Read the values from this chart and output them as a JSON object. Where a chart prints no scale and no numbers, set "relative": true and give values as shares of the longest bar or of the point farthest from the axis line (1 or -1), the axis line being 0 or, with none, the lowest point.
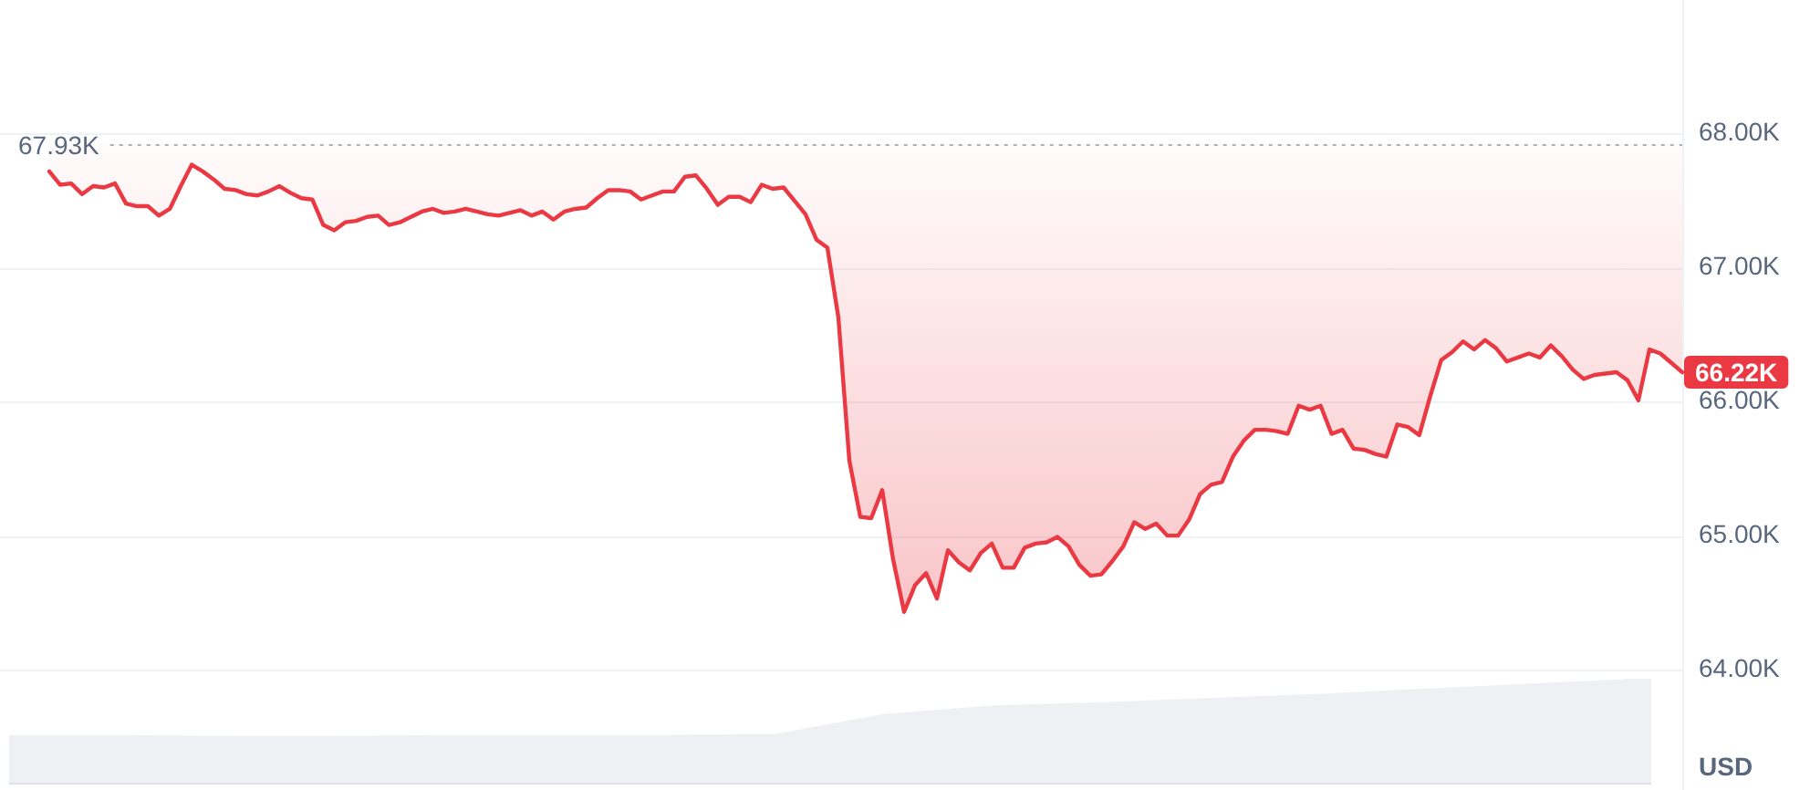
{
  "chart_data": [
    {
      "type": "line",
      "tick_labels": "y",
      "grid": "y",
      "ylabel": "USD",
      "categories": [
        null,
        null,
        null,
        null,
        null,
        null,
        null,
        null,
        null,
        null,
        null,
        null,
        null,
        null,
        null,
        null,
        null,
        null,
        null,
        null,
        null,
        null,
        null,
        null,
        null,
        null,
        null,
        null,
        null,
        null,
        null,
        null,
        null,
        null,
        null,
        null,
        null,
        null,
        null,
        null,
        null,
        null,
        null,
        null,
        null,
        null,
        null,
        null,
        null,
        null,
        null,
        null,
        null,
        null,
        null,
        null,
        null,
        null,
        null,
        null,
        null,
        null,
        null,
        null,
        null,
        null,
        null,
        null,
        null,
        null,
        null,
        null,
        null,
        null,
        null,
        null,
        null,
        null,
        null,
        null,
        null,
        null,
        null,
        null,
        null,
        null,
        null,
        null,
        null,
        null,
        null,
        null,
        null,
        null,
        null,
        null,
        null,
        null,
        null,
        null,
        null,
        null,
        null,
        null,
        null,
        null,
        null,
        null,
        null,
        null,
        null,
        null,
        null,
        null,
        null,
        null,
        null,
        null,
        null,
        null,
        null,
        null,
        null,
        null,
        null,
        null,
        null,
        null,
        null,
        null,
        null,
        null,
        null,
        null,
        null,
        null,
        null,
        null,
        null,
        null,
        null,
        null,
        null,
        null,
        null,
        null,
        null,
        null,
        null,
        null
      ],
      "series": [
        {
          "color": "#ea3943",
          "values": [
            67.72,
            67.62,
            67.63,
            67.55,
            67.61,
            67.6,
            67.63,
            67.48,
            67.46,
            67.46,
            67.39,
            67.44,
            67.61,
            67.77,
            67.72,
            67.66,
            67.59,
            67.58,
            67.55,
            67.54,
            67.57,
            67.61,
            67.56,
            67.52,
            67.51,
            67.32,
            67.28,
            67.34,
            67.35,
            67.38,
            67.39,
            67.32,
            67.34,
            67.38,
            67.42,
            67.44,
            67.41,
            67.42,
            67.44,
            67.42,
            67.4,
            67.39,
            67.41,
            67.43,
            67.39,
            67.42,
            67.36,
            67.42,
            67.44,
            67.45,
            67.52,
            67.58,
            67.58,
            67.57,
            67.51,
            67.54,
            67.57,
            67.57,
            67.68,
            67.69,
            67.59,
            67.47,
            67.53,
            67.53,
            67.49,
            67.62,
            67.59,
            67.6,
            67.5,
            67.4,
            67.21,
            67.15,
            66.63,
            65.56,
            65.14,
            65.13,
            65.34,
            64.82,
            64.43,
            64.63,
            64.72,
            64.53,
            64.89,
            64.8,
            64.74,
            64.87,
            64.94,
            64.76,
            64.76,
            64.91,
            64.94,
            64.95,
            64.99,
            64.92,
            64.78,
            64.7,
            64.71,
            64.81,
            64.92,
            65.1,
            65.05,
            65.09,
            65.0,
            65.0,
            65.12,
            65.31,
            65.38,
            65.4,
            65.59,
            65.71,
            65.79,
            65.79,
            65.78,
            65.76,
            65.97,
            65.94,
            65.97,
            65.76,
            65.79,
            65.65,
            65.64,
            65.61,
            65.59,
            65.83,
            65.81,
            65.75,
            66.04,
            66.31,
            66.37,
            66.45,
            66.39,
            66.46,
            66.4,
            66.3,
            66.33,
            66.36,
            66.33,
            66.42,
            66.34,
            66.24,
            66.17,
            66.2,
            66.21,
            66.22,
            66.16,
            66.01,
            66.39,
            66.36,
            66.29,
            66.22
          ],
          "lower": [
            67.72,
            67.62,
            67.63,
            67.55,
            67.61,
            67.6,
            67.63,
            67.48,
            67.46,
            67.46,
            67.39,
            67.44,
            67.61,
            67.77,
            67.72,
            67.66,
            67.59,
            67.58,
            67.55,
            67.54,
            67.57,
            67.61,
            67.56,
            67.52,
            67.51,
            67.32,
            67.28,
            67.34,
            67.35,
            67.38,
            67.39,
            67.32,
            67.34,
            67.38,
            67.42,
            67.44,
            67.41,
            67.42,
            67.44,
            67.42,
            67.4,
            67.39,
            67.41,
            67.43,
            67.39,
            67.42,
            67.36,
            67.42,
            67.44,
            67.45,
            67.52,
            67.58,
            67.58,
            67.57,
            67.51,
            67.54,
            67.57,
            67.57,
            67.68,
            67.69,
            67.59,
            67.47,
            67.53,
            67.53,
            67.49,
            67.62,
            67.59,
            67.6,
            67.5,
            67.4,
            67.21,
            67.15,
            66.63,
            65.56,
            65.14,
            65.13,
            65.34,
            64.82,
            64.43,
            64.63,
            64.72,
            64.53,
            64.89,
            64.8,
            64.74,
            64.87,
            64.94,
            64.76,
            64.76,
            64.91,
            64.94,
            64.95,
            64.99,
            64.92,
            64.78,
            64.7,
            64.71,
            64.81,
            64.92,
            65.1,
            65.05,
            65.09,
            65.0,
            65.0,
            65.12,
            65.31,
            65.38,
            65.4,
            65.59,
            65.71,
            65.79,
            65.79,
            65.78,
            65.76,
            65.97,
            65.94,
            65.97,
            65.76,
            65.79,
            65.65,
            65.64,
            65.61,
            65.59,
            65.83,
            65.81,
            65.75,
            66.04,
            66.31,
            66.37,
            66.45,
            66.39,
            66.46,
            66.4,
            66.3,
            66.33,
            66.36,
            66.33,
            66.42,
            66.34,
            66.24,
            66.17,
            66.2,
            66.21,
            66.22,
            66.16,
            66.01,
            66.39,
            66.36,
            66.29,
            66.22
          ],
          "upper": [
            67.93,
            67.93,
            67.93,
            67.93,
            67.93,
            67.93,
            67.93,
            67.93,
            67.93,
            67.93,
            67.93,
            67.93,
            67.93,
            67.93,
            67.93,
            67.93,
            67.93,
            67.93,
            67.93,
            67.93,
            67.93,
            67.93,
            67.93,
            67.93,
            67.93,
            67.93,
            67.93,
            67.93,
            67.93,
            67.93,
            67.93,
            67.93,
            67.93,
            67.93,
            67.93,
            67.93,
            67.93,
            67.93,
            67.93,
            67.93,
            67.93,
            67.93,
            67.93,
            67.93,
            67.93,
            67.93,
            67.93,
            67.93,
            67.93,
            67.93,
            67.93,
            67.93,
            67.93,
            67.93,
            67.93,
            67.93,
            67.93,
            67.93,
            67.93,
            67.93,
            67.93,
            67.93,
            67.93,
            67.93,
            67.93,
            67.93,
            67.93,
            67.93,
            67.93,
            67.93,
            67.93,
            67.93,
            67.93,
            67.93,
            67.93,
            67.93,
            67.93,
            67.93,
            67.93,
            67.93,
            67.93,
            67.93,
            67.93,
            67.93,
            67.93,
            67.93,
            67.93,
            67.93,
            67.93,
            67.93,
            67.93,
            67.93,
            67.93,
            67.93,
            67.93,
            67.93,
            67.93,
            67.93,
            67.93,
            67.93,
            67.93,
            67.93,
            67.93,
            67.93,
            67.93,
            67.93,
            67.93,
            67.93,
            67.93,
            67.93,
            67.93,
            67.93,
            67.93,
            67.93,
            67.93,
            67.93,
            67.93,
            67.93,
            67.93,
            67.93,
            67.93,
            67.93,
            67.93,
            67.93,
            67.93,
            67.93,
            67.93,
            67.93,
            67.93,
            67.93,
            67.93,
            67.93,
            67.93,
            67.93,
            67.93,
            67.93,
            67.93,
            67.93,
            67.93,
            67.93,
            67.93,
            67.93,
            67.93,
            67.93,
            67.93,
            67.93,
            67.93,
            67.93,
            67.93,
            67.93
          ],
          "value_labels": [
            null,
            null,
            null,
            null,
            null,
            null,
            null,
            null,
            null,
            null,
            null,
            null,
            null,
            null,
            null,
            null,
            null,
            null,
            null,
            null,
            null,
            null,
            null,
            null,
            null,
            null,
            null,
            null,
            null,
            null,
            null,
            null,
            null,
            null,
            null,
            null,
            null,
            null,
            null,
            null,
            null,
            null,
            null,
            null,
            null,
            null,
            null,
            null,
            null,
            null,
            null,
            null,
            null,
            null,
            null,
            null,
            null,
            null,
            null,
            null,
            null,
            null,
            null,
            null,
            null,
            null,
            null,
            null,
            null,
            null,
            null,
            null,
            null,
            null,
            null,
            null,
            null,
            null,
            null,
            null,
            null,
            null,
            null,
            null,
            null,
            null,
            null,
            null,
            null,
            null,
            null,
            null,
            null,
            null,
            null,
            null,
            null,
            null,
            null,
            null,
            null,
            null,
            null,
            null,
            null,
            null,
            null,
            null,
            null,
            null,
            null,
            null,
            null,
            null,
            null,
            null,
            null,
            null,
            null,
            null,
            null,
            null,
            null,
            null,
            null,
            null,
            null,
            null,
            null,
            null,
            null,
            null,
            null,
            null,
            null,
            null,
            null,
            null,
            null,
            null,
            null,
            null,
            null,
            null,
            null,
            null,
            null,
            null,
            null,
            "66.22K"
          ]
        }
      ],
      "ylim": [
        63.1,
        69.0
      ],
      "yticks": [
        {
          "value": 64,
          "label": "64.00K"
        },
        {
          "value": 65,
          "label": "65.00K"
        },
        {
          "value": 66,
          "label": "66.00K"
        },
        {
          "value": 67,
          "label": "67.00K"
        },
        {
          "value": 68,
          "label": "68.00K"
        }
      ],
      "ref_lines": [
        {
          "axis": "y",
          "value": 67.93,
          "label": "67.93K",
          "color": "#a7b1c2",
          "line_style": "dotted"
        }
      ]
    },
    {
      "type": "area",
      "relative": true,
      "color": "#eef0f4",
      "categories": [
        null,
        null,
        null,
        null,
        null,
        null,
        null,
        null,
        null,
        null,
        null,
        null,
        null,
        null,
        null,
        null
      ],
      "values": [
        0.46,
        0.46,
        0.45,
        0.45,
        0.46,
        0.46,
        0.46,
        0.47,
        0.66,
        0.74,
        0.77,
        0.81,
        0.85,
        0.9,
        0.95,
        1
      ]
    }
  ]
}
